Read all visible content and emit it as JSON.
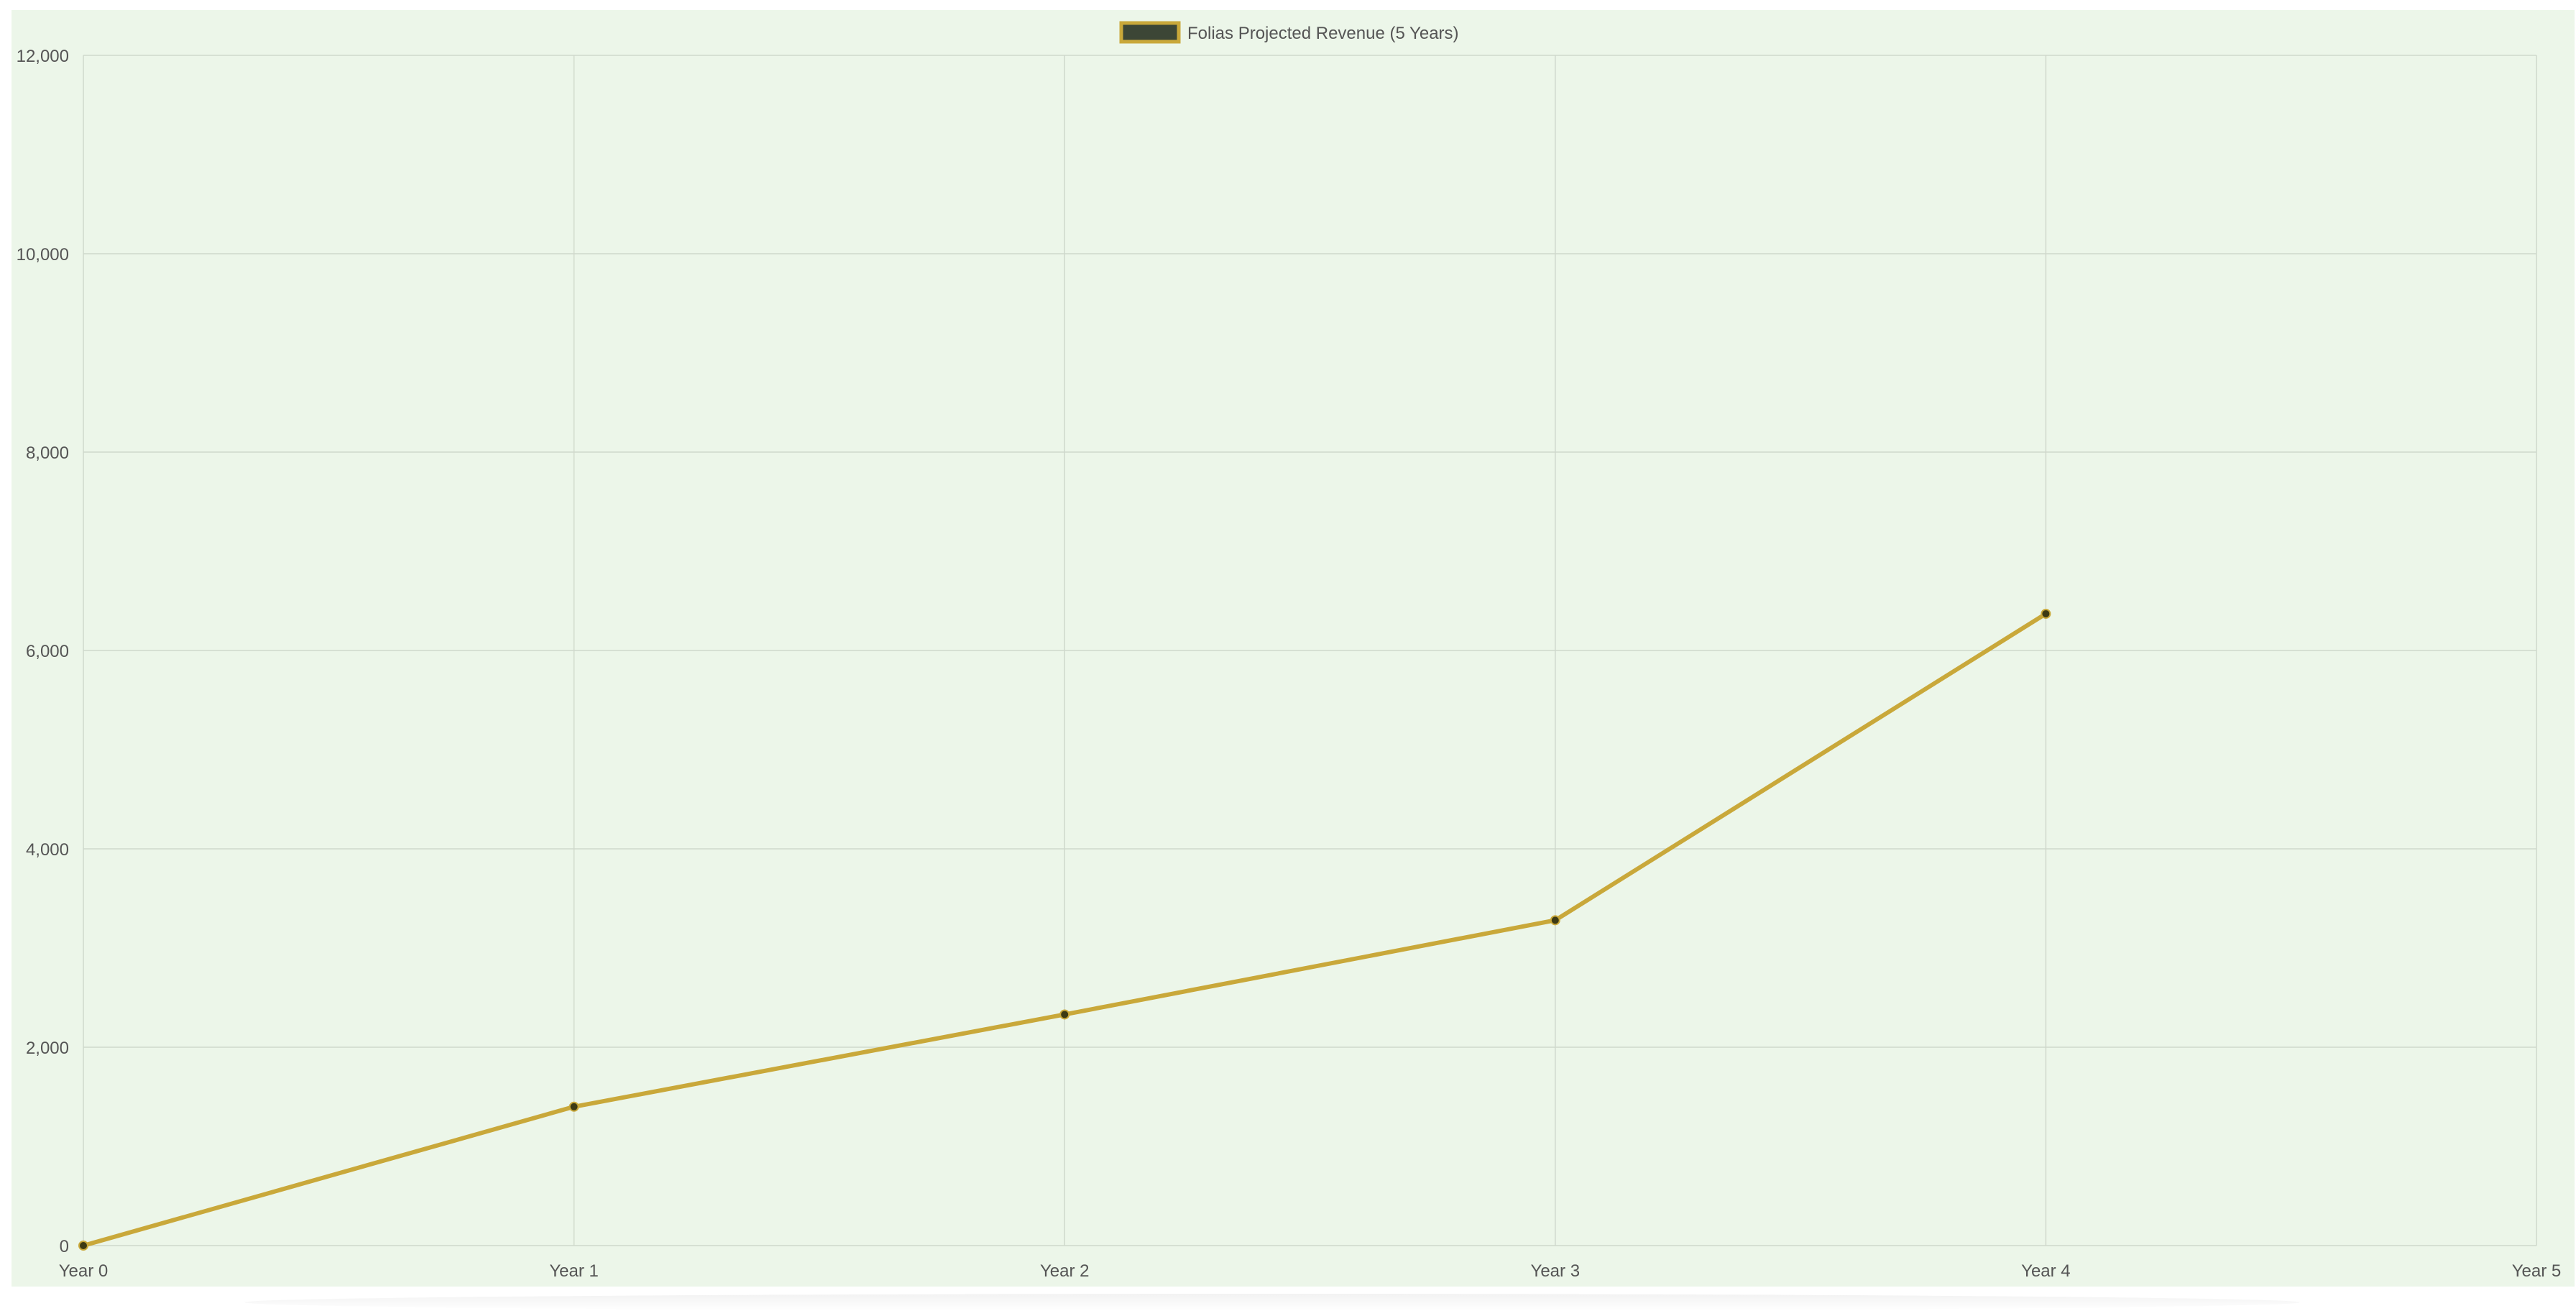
{
  "chart_data": {
    "type": "line",
    "categories": [
      "Year 0",
      "Year 1",
      "Year 2",
      "Year 3",
      "Year 4",
      "Year 5"
    ],
    "series": [
      {
        "name": "Folias Projected Revenue (5 Years)",
        "values": [
          0,
          1400,
          2330,
          3280,
          6370,
          null
        ]
      }
    ],
    "y_ticks": [
      "0",
      "2,000",
      "4,000",
      "6,000",
      "8,000",
      "10,000",
      "12,000"
    ],
    "ylim": [
      0,
      12000
    ],
    "grid": true,
    "legend_position": "top-center",
    "colors": {
      "line": "#c9a83a",
      "point": "#3d3a14",
      "legend_fill": "#3c4636",
      "legend_border": "#c9a83a",
      "grid": "#cfd8cc",
      "axis_text": "#555555",
      "background": "#ecf6e9"
    }
  }
}
